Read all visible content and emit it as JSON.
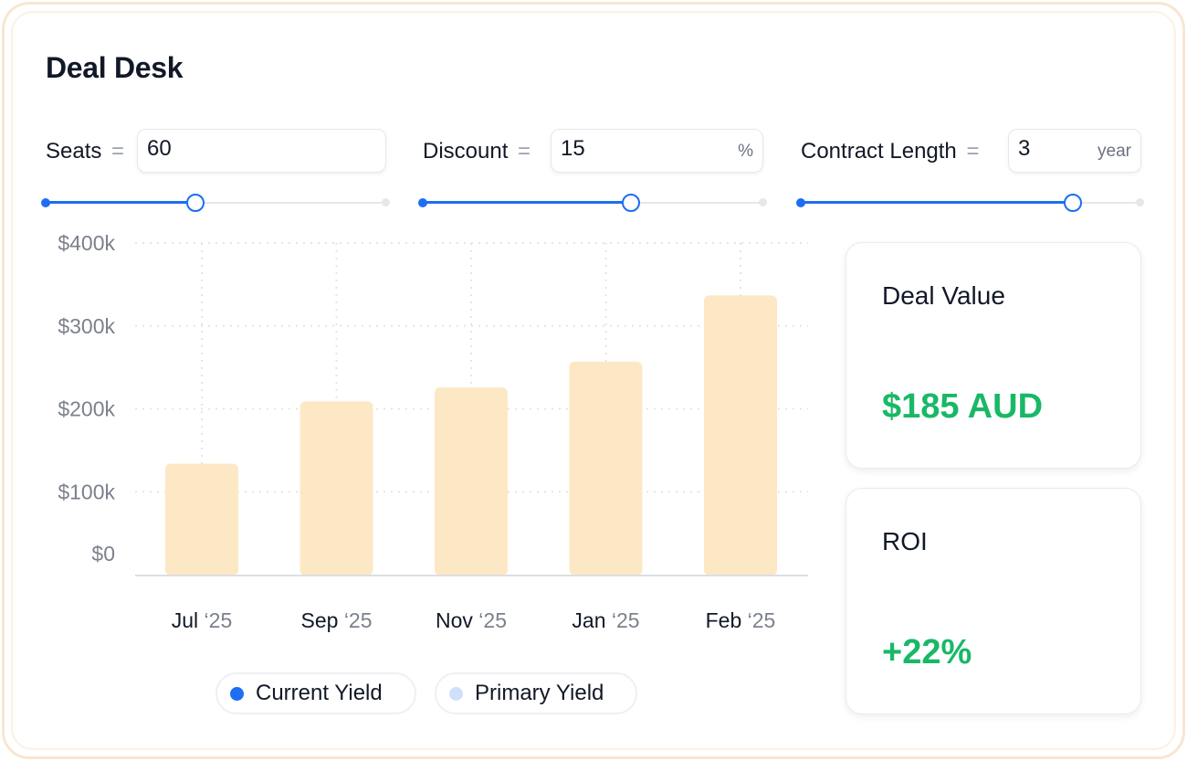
{
  "app": {
    "title": "Deal Desk"
  },
  "controls": [
    {
      "label": "Seats",
      "equals": "=",
      "value": "60",
      "unit": "",
      "slider_fraction": 0.44
    },
    {
      "label": "Discount",
      "equals": "=",
      "value": "15",
      "unit": "%",
      "slider_fraction": 0.61
    },
    {
      "label": "Contract Length",
      "equals": "=",
      "value": "3",
      "unit": "year",
      "slider_fraction": 0.8
    }
  ],
  "chart_data": {
    "type": "bar",
    "categories": [
      "Jul ‘25",
      "Sep ‘25",
      "Nov ‘25",
      "Jan ‘25",
      "Feb ‘25"
    ],
    "series": [
      {
        "name": "Current Yield",
        "values": [
          135000,
          210000,
          227000,
          258000,
          338000
        ]
      }
    ],
    "ylim": [
      0,
      400000
    ],
    "yticks": [
      0,
      100000,
      200000,
      300000,
      400000
    ],
    "ytick_labels": [
      "$0",
      "$100k",
      "$200k",
      "$300k",
      "$400k"
    ],
    "grid": true,
    "bar_color": "#fde8c6",
    "legend": [
      {
        "name": "Current Yield",
        "color": "#1d6ef2"
      },
      {
        "name": "Primary Yield",
        "color": "#cfe0fb"
      }
    ],
    "legend_position": "bottom"
  },
  "cards": {
    "deal_value": {
      "title": "Deal Value",
      "value": "$185 AUD"
    },
    "roi": {
      "title": "ROI",
      "value": "+22%"
    }
  },
  "colors": {
    "accent": "#1d6ef2",
    "positive": "#19b867",
    "frame": "#f8e6d2"
  }
}
